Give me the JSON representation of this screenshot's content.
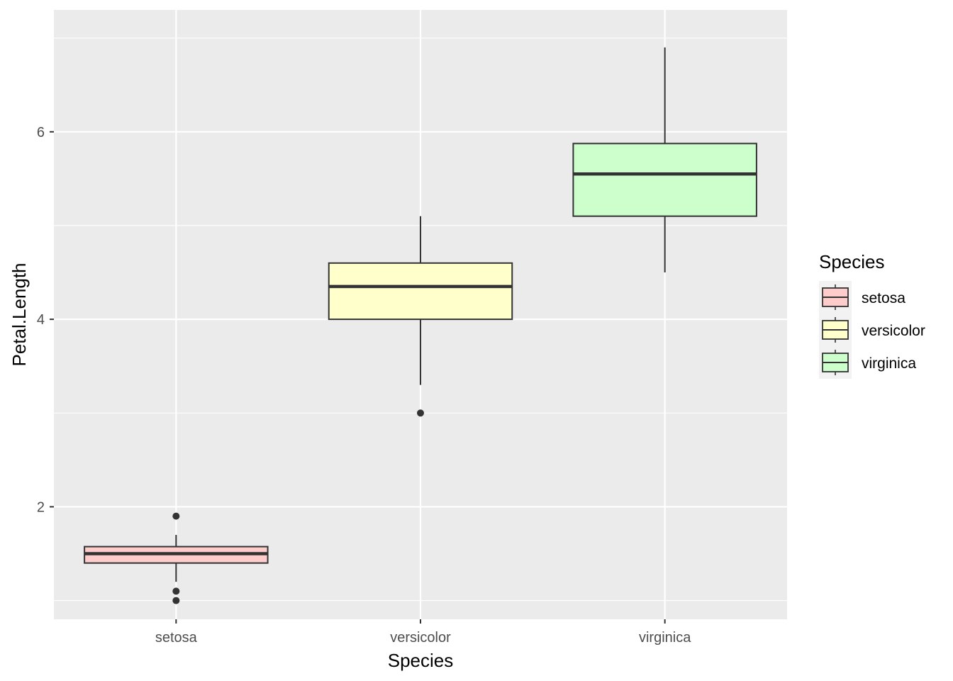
{
  "chart_data": {
    "type": "boxplot",
    "xlabel": "Species",
    "ylabel": "Petal.Length",
    "categories": [
      "setosa",
      "versicolor",
      "virginica"
    ],
    "ylim": [
      0.8,
      7.3
    ],
    "yticks": [
      2,
      4,
      6
    ],
    "grid": true,
    "legend": {
      "title": "Species",
      "position": "right",
      "entries": [
        "setosa",
        "versicolor",
        "virginica"
      ]
    },
    "series": [
      {
        "category": "setosa",
        "min": 1.2,
        "q1": 1.4,
        "median": 1.5,
        "q3": 1.575,
        "max": 1.7,
        "outliers": [
          1.9,
          1.1,
          1.0
        ],
        "fill": "#ffcccc"
      },
      {
        "category": "versicolor",
        "min": 3.3,
        "q1": 4.0,
        "median": 4.35,
        "q3": 4.6,
        "max": 5.1,
        "outliers": [
          3.0
        ],
        "fill": "#ffffcc"
      },
      {
        "category": "virginica",
        "min": 4.5,
        "q1": 5.1,
        "median": 5.55,
        "q3": 5.875,
        "max": 6.9,
        "outliers": [],
        "fill": "#ccffcc"
      }
    ],
    "colors": {
      "panel_background": "#ebebeb",
      "grid_line": "#ffffff",
      "box_stroke": "#333333",
      "tick_text": "#4d4d4d"
    }
  }
}
